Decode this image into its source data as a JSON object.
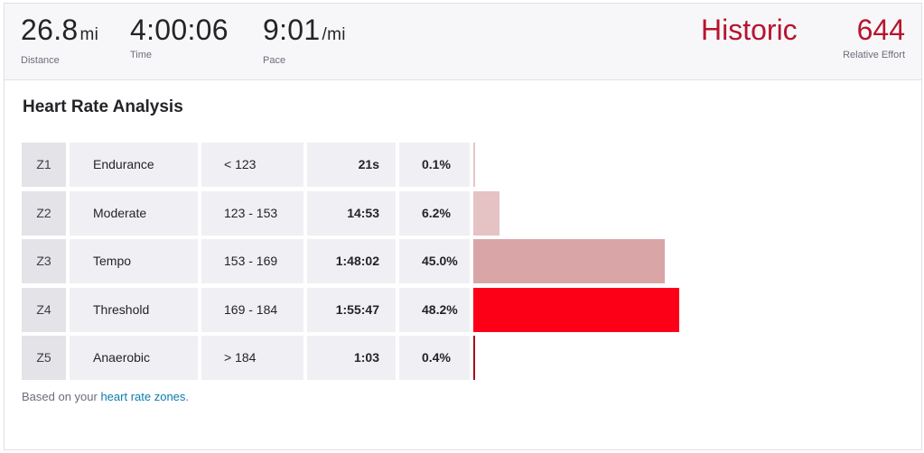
{
  "stats": {
    "distance": {
      "value": "26.8",
      "unit": "mi",
      "label": "Distance"
    },
    "time": {
      "value": "4:00:06",
      "label": "Time"
    },
    "pace": {
      "value": "9:01",
      "unit": "/mi",
      "label": "Pace"
    }
  },
  "historic_label": "Historic",
  "relative_effort": {
    "value": "644",
    "label": "Relative Effort"
  },
  "section_title": "Heart Rate Analysis",
  "zones": [
    {
      "zone": "Z1",
      "name": "Endurance",
      "range": "< 123",
      "time": "21s",
      "percent": "0.1%",
      "fraction": 0.001,
      "color": "#e8c5c6"
    },
    {
      "zone": "Z2",
      "name": "Moderate",
      "range": "123 - 153",
      "time": "14:53",
      "percent": "6.2%",
      "fraction": 0.062,
      "color": "#e5c2c3"
    },
    {
      "zone": "Z3",
      "name": "Tempo",
      "range": "153 - 169",
      "time": "1:48:02",
      "percent": "45.0%",
      "fraction": 0.45,
      "color": "#d9a5a6"
    },
    {
      "zone": "Z4",
      "name": "Threshold",
      "range": "169 - 184",
      "time": "1:55:47",
      "percent": "48.2%",
      "fraction": 0.482,
      "color": "#fc0018"
    },
    {
      "zone": "Z5",
      "name": "Anaerobic",
      "range": "> 184",
      "time": "1:03",
      "percent": "0.4%",
      "fraction": 0.004,
      "color": "#a3101f"
    }
  ],
  "footnote": {
    "prefix": "Based on your ",
    "link_text": "heart rate zones",
    "suffix": "."
  },
  "colors": {
    "accent": "#b8142d",
    "link": "#0c7bab"
  }
}
